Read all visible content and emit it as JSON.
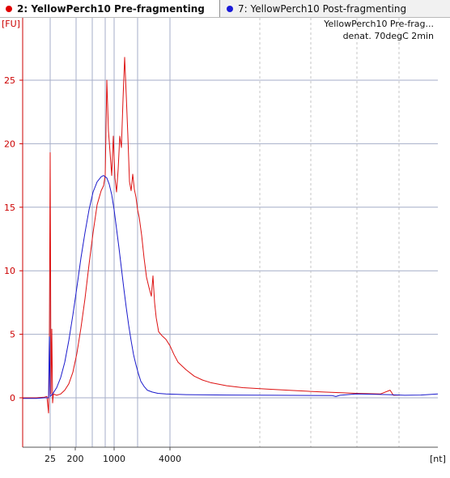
{
  "tabs": [
    {
      "label": "2: YellowPerch10 Pre-fragmenting",
      "color": "#e00000",
      "active": true
    },
    {
      "label": "7: YellowPerch10 Post-fragmenting",
      "color": "#1a1ad8",
      "active": false
    }
  ],
  "legend_box": {
    "line1": "YellowPerch10 Pre-frag...",
    "line2": "denat. 70degC 2min"
  },
  "chart_data": {
    "type": "line",
    "title": "",
    "xlabel": "[nt]",
    "ylabel": "[FU]",
    "x_tick_labels": [
      "25",
      "200",
      "1000",
      "4000"
    ],
    "y_ticks": [
      0,
      5,
      10,
      15,
      20,
      25
    ],
    "ylim": [
      -3.9,
      28.5
    ],
    "grid": true,
    "series": [
      {
        "name": "2: YellowPerch10 Pre-fragmenting",
        "color": "#dd1111",
        "x_unit": "px_col",
        "points": [
          [
            28,
            0.0
          ],
          [
            45,
            0.0
          ],
          [
            55,
            0.05
          ],
          [
            58,
            0.1
          ],
          [
            60,
            -1.2
          ],
          [
            61,
            4.5
          ],
          [
            62,
            19.3
          ],
          [
            63,
            0.3
          ],
          [
            64,
            5.4
          ],
          [
            65,
            -0.4
          ],
          [
            66,
            0.3
          ],
          [
            70,
            0.2
          ],
          [
            75,
            0.3
          ],
          [
            80,
            0.6
          ],
          [
            85,
            1.1
          ],
          [
            90,
            2.0
          ],
          [
            95,
            3.5
          ],
          [
            100,
            5.5
          ],
          [
            105,
            7.8
          ],
          [
            110,
            10.5
          ],
          [
            115,
            13.0
          ],
          [
            120,
            15.2
          ],
          [
            125,
            16.3
          ],
          [
            128,
            16.7
          ],
          [
            130,
            17.5
          ],
          [
            132,
            25.0
          ],
          [
            134,
            21.0
          ],
          [
            136,
            19.3
          ],
          [
            138,
            17.5
          ],
          [
            140,
            20.6
          ],
          [
            142,
            17.3
          ],
          [
            144,
            16.2
          ],
          [
            146,
            18.0
          ],
          [
            148,
            20.6
          ],
          [
            150,
            19.7
          ],
          [
            152,
            23.5
          ],
          [
            154,
            26.8
          ],
          [
            156,
            23.8
          ],
          [
            158,
            20.6
          ],
          [
            160,
            17.0
          ],
          [
            162,
            16.3
          ],
          [
            164,
            17.6
          ],
          [
            166,
            16.4
          ],
          [
            168,
            15.8
          ],
          [
            170,
            14.8
          ],
          [
            172,
            14.2
          ],
          [
            175,
            12.8
          ],
          [
            178,
            11.0
          ],
          [
            181,
            9.5
          ],
          [
            184,
            8.7
          ],
          [
            187,
            8.0
          ],
          [
            189,
            9.6
          ],
          [
            191,
            7.5
          ],
          [
            193,
            6.3
          ],
          [
            196,
            5.2
          ],
          [
            200,
            4.9
          ],
          [
            205,
            4.6
          ],
          [
            210,
            4.1
          ],
          [
            215,
            3.4
          ],
          [
            220,
            2.8
          ],
          [
            230,
            2.2
          ],
          [
            240,
            1.7
          ],
          [
            250,
            1.4
          ],
          [
            260,
            1.2
          ],
          [
            280,
            0.95
          ],
          [
            300,
            0.8
          ],
          [
            330,
            0.68
          ],
          [
            360,
            0.58
          ],
          [
            400,
            0.45
          ],
          [
            440,
            0.35
          ],
          [
            470,
            0.3
          ],
          [
            482,
            0.6
          ],
          [
            486,
            0.2
          ],
          [
            494,
            0.22
          ]
        ]
      },
      {
        "name": "7: YellowPerch10 Post-fragmenting",
        "color": "#1a1acc",
        "x_unit": "px_col",
        "points": [
          [
            28,
            -0.05
          ],
          [
            45,
            -0.05
          ],
          [
            55,
            0.0
          ],
          [
            60,
            0.0
          ],
          [
            61,
            4.8
          ],
          [
            62,
            0.1
          ],
          [
            65,
            0.3
          ],
          [
            70,
            0.8
          ],
          [
            75,
            1.6
          ],
          [
            80,
            2.8
          ],
          [
            85,
            4.5
          ],
          [
            90,
            6.5
          ],
          [
            95,
            8.7
          ],
          [
            100,
            11.0
          ],
          [
            105,
            13.0
          ],
          [
            110,
            14.8
          ],
          [
            115,
            16.2
          ],
          [
            120,
            17.0
          ],
          [
            125,
            17.4
          ],
          [
            128,
            17.5
          ],
          [
            132,
            17.3
          ],
          [
            135,
            16.8
          ],
          [
            138,
            16.0
          ],
          [
            141,
            14.8
          ],
          [
            144,
            13.3
          ],
          [
            147,
            11.8
          ],
          [
            150,
            10.2
          ],
          [
            153,
            8.6
          ],
          [
            156,
            7.1
          ],
          [
            159,
            5.7
          ],
          [
            162,
            4.5
          ],
          [
            165,
            3.4
          ],
          [
            168,
            2.6
          ],
          [
            171,
            1.9
          ],
          [
            174,
            1.3
          ],
          [
            178,
            0.9
          ],
          [
            182,
            0.6
          ],
          [
            188,
            0.45
          ],
          [
            195,
            0.35
          ],
          [
            205,
            0.3
          ],
          [
            230,
            0.25
          ],
          [
            280,
            0.22
          ],
          [
            340,
            0.2
          ],
          [
            410,
            0.18
          ],
          [
            415,
            0.1
          ],
          [
            420,
            0.2
          ],
          [
            440,
            0.3
          ],
          [
            460,
            0.28
          ],
          [
            480,
            0.25
          ],
          [
            500,
            0.2
          ],
          [
            520,
            0.22
          ],
          [
            541,
            0.3
          ]
        ]
      }
    ]
  }
}
